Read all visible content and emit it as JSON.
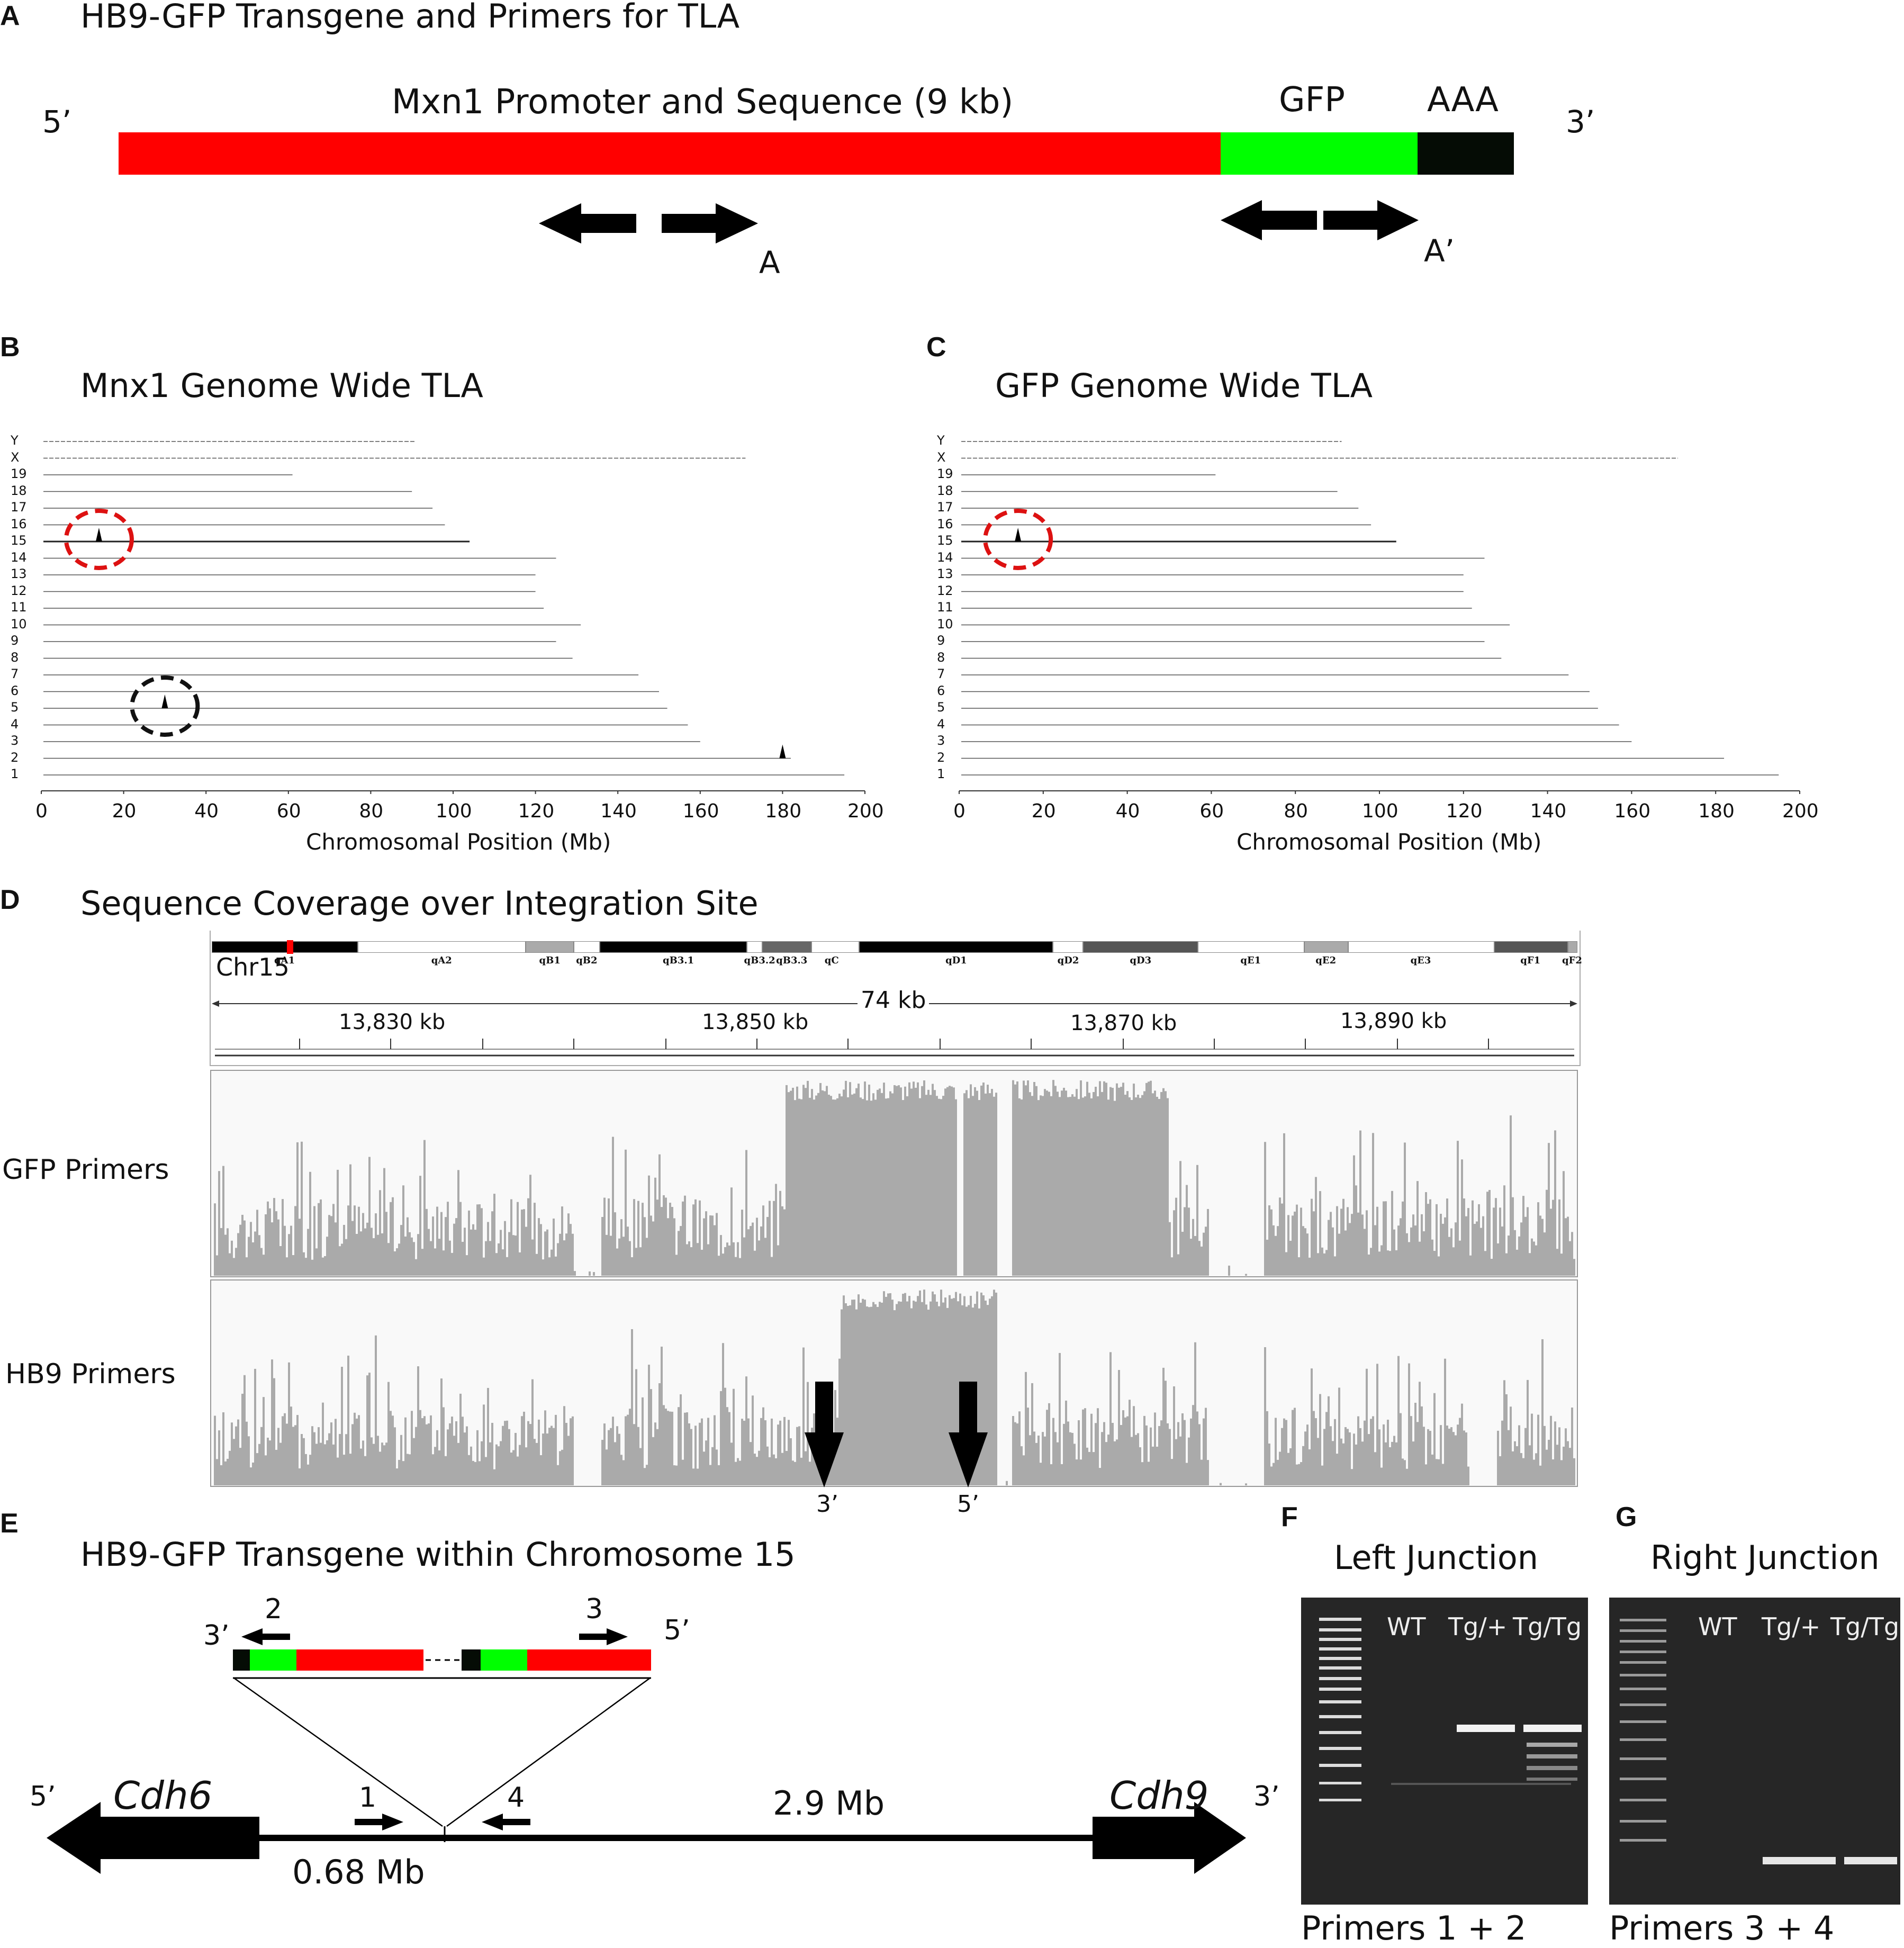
{
  "panels": {
    "a": {
      "letter": "A",
      "title": "HB9-GFP Transgene and Primers for TLA",
      "end5": "5’",
      "end3": "3’",
      "seg_red_label": "Mxn1 Promoter and Sequence (9 kb)",
      "seg_green_label": "GFP",
      "seg_black_label": "AAA",
      "primer_a": "A",
      "primer_a_prime": "A’",
      "colors": {
        "promoter": "#ff0000",
        "gfp": "#00ff00",
        "polya": "#050c05"
      }
    },
    "b": {
      "letter": "B",
      "title": "Mnx1 Genome Wide TLA",
      "xlabel": "Chromosomal Position (Mb)"
    },
    "c": {
      "letter": "C",
      "title": "GFP Genome Wide TLA",
      "xlabel": "Chromosomal Position (Mb)"
    },
    "d": {
      "letter": "D",
      "title": "Sequence Coverage over Integration Site",
      "chrom": "Chr15",
      "span": "74 kb",
      "ticks": [
        "13,830 kb",
        "13,850 kb",
        "13,870 kb",
        "13,890 kb"
      ],
      "bands": [
        "qA1",
        "qA2",
        "qB1",
        "qB2",
        "qB3.1",
        "qB3.2",
        "qB3.3",
        "qC",
        "qD1",
        "qD2",
        "qD3",
        "qE1",
        "qE2",
        "qE3",
        "qF1",
        "qF2"
      ],
      "track1": "GFP Primers",
      "track2": "HB9 Primers",
      "arrow_left": "3’",
      "arrow_right": "5’"
    },
    "e": {
      "letter": "E",
      "title": "HB9-GFP Transgene within Chromosome 15",
      "gene_left": "Cdh6",
      "gene_right": "Cdh9",
      "end5": "5’",
      "end3": "3’",
      "dist_left": "0.68 Mb",
      "dist_right": "2.9 Mb",
      "p1": "1",
      "p2": "2",
      "p3": "3",
      "p4": "4",
      "ins3": "3’",
      "ins5": "5’"
    },
    "f": {
      "letter": "F",
      "title": "Left Junction",
      "lanes": [
        "WT",
        "Tg/+",
        "Tg/Tg"
      ],
      "primers": "Primers 1 + 2"
    },
    "g": {
      "letter": "G",
      "title": "Right Junction",
      "lanes": [
        "WT",
        "Tg/+",
        "Tg/Tg"
      ],
      "primers": "Primers 3 + 4"
    }
  },
  "chart_data": [
    {
      "type": "scatter",
      "panel": "B",
      "chromosomes": [
        "Y",
        "X",
        "19",
        "18",
        "17",
        "16",
        "15",
        "14",
        "13",
        "12",
        "11",
        "10",
        "9",
        "8",
        "7",
        "6",
        "5",
        "4",
        "3",
        "2",
        "1"
      ],
      "x_ticks": [
        0,
        20,
        40,
        60,
        80,
        100,
        120,
        140,
        160,
        180,
        200
      ],
      "xlim": [
        0,
        200
      ],
      "peaks": [
        {
          "chrom": "15",
          "x": 14
        },
        {
          "chrom": "5",
          "x": 30
        },
        {
          "chrom": "2",
          "x": 180
        }
      ]
    },
    {
      "type": "scatter",
      "panel": "C",
      "chromosomes": [
        "Y",
        "X",
        "19",
        "18",
        "17",
        "16",
        "15",
        "14",
        "13",
        "12",
        "11",
        "10",
        "9",
        "8",
        "7",
        "6",
        "5",
        "4",
        "3",
        "2",
        "1"
      ],
      "x_ticks": [
        0,
        20,
        40,
        60,
        80,
        100,
        120,
        140,
        160,
        180,
        200
      ],
      "xlim": [
        0,
        200
      ],
      "peaks": [
        {
          "chrom": "15",
          "x": 14
        }
      ]
    }
  ]
}
